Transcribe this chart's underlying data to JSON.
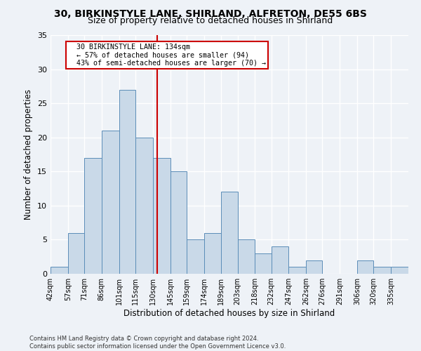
{
  "title1": "30, BIRKINSTYLE LANE, SHIRLAND, ALFRETON, DE55 6BS",
  "title2": "Size of property relative to detached houses in Shirland",
  "xlabel": "Distribution of detached houses by size in Shirland",
  "ylabel": "Number of detached properties",
  "categories": [
    "42sqm",
    "57sqm",
    "71sqm",
    "86sqm",
    "101sqm",
    "115sqm",
    "130sqm",
    "145sqm",
    "159sqm",
    "174sqm",
    "189sqm",
    "203sqm",
    "218sqm",
    "232sqm",
    "247sqm",
    "262sqm",
    "276sqm",
    "291sqm",
    "306sqm",
    "320sqm",
    "335sqm"
  ],
  "values": [
    1,
    6,
    17,
    21,
    27,
    20,
    17,
    15,
    5,
    6,
    12,
    5,
    3,
    4,
    1,
    2,
    0,
    0,
    2,
    1,
    1
  ],
  "bar_color": "#c9d9e8",
  "bar_edge_color": "#5b8db8",
  "background_color": "#eef2f7",
  "grid_color": "#ffffff",
  "annotation_text": "  30 BIRKINSTYLE LANE: 134sqm\n  ← 57% of detached houses are smaller (94)\n  43% of semi-detached houses are larger (70) →",
  "annotation_box_color": "#ffffff",
  "annotation_box_edge_color": "#cc0000",
  "vline_x": 134,
  "vline_color": "#cc0000",
  "bin_edges": [
    42,
    57,
    71,
    86,
    101,
    115,
    130,
    145,
    159,
    174,
    189,
    203,
    218,
    232,
    247,
    262,
    276,
    291,
    306,
    320,
    335,
    350
  ],
  "ylim": [
    0,
    35
  ],
  "yticks": [
    0,
    5,
    10,
    15,
    20,
    25,
    30,
    35
  ],
  "footer1": "Contains HM Land Registry data © Crown copyright and database right 2024.",
  "footer2": "Contains public sector information licensed under the Open Government Licence v3.0."
}
